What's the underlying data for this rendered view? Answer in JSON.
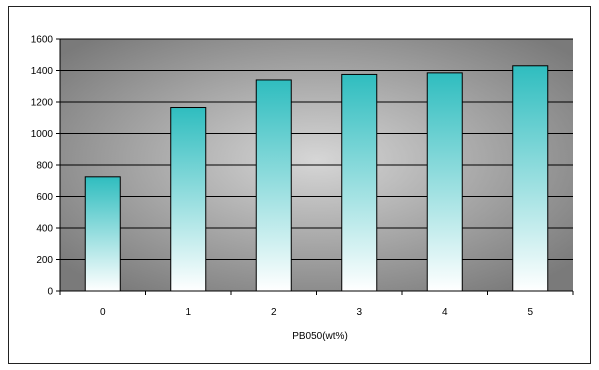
{
  "chart_data": {
    "type": "bar",
    "title": "",
    "xlabel": "PB050(wt%)",
    "ylabel": "",
    "categories": [
      "0",
      "1",
      "2",
      "3",
      "4",
      "5"
    ],
    "values": [
      725,
      1165,
      1340,
      1375,
      1385,
      1430
    ],
    "ylim": [
      0,
      1600
    ],
    "yticks": [
      0,
      200,
      400,
      600,
      800,
      1000,
      1200,
      1400,
      1600
    ],
    "grid": true,
    "legend": "none",
    "colors": {
      "bar_top": "#2fbdbf",
      "bar_bottom": "#ffffff",
      "plot_center": "#d6d6d6",
      "plot_edge": "#7a7a7a",
      "gridline": "#000000"
    }
  }
}
